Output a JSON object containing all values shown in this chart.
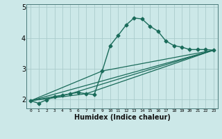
{
  "title": "",
  "xlabel": "Humidex (Indice chaleur)",
  "bg_color": "#cce8e8",
  "grid_color": "#aacccc",
  "line_color": "#1a6b5a",
  "xlim": [
    -0.5,
    23.5
  ],
  "ylim": [
    1.7,
    5.1
  ],
  "yticks": [
    2,
    3,
    4,
    5
  ],
  "xticks": [
    0,
    1,
    2,
    3,
    4,
    5,
    6,
    7,
    8,
    9,
    10,
    11,
    12,
    13,
    14,
    15,
    16,
    17,
    18,
    19,
    20,
    21,
    22,
    23
  ],
  "lines": [
    {
      "x": [
        0,
        1,
        2,
        3,
        4,
        5,
        6,
        7,
        8,
        9,
        10,
        11,
        12,
        13,
        14,
        15,
        16,
        17,
        18,
        19,
        20,
        21,
        22,
        23
      ],
      "y": [
        1.95,
        1.87,
        1.98,
        2.08,
        2.12,
        2.18,
        2.22,
        2.18,
        2.15,
        2.92,
        3.75,
        4.08,
        4.42,
        4.65,
        4.62,
        4.38,
        4.22,
        3.9,
        3.75,
        3.7,
        3.62,
        3.62,
        3.62,
        3.6
      ],
      "marker": "D",
      "markersize": 2.5,
      "linewidth": 1.0
    },
    {
      "x": [
        0,
        23
      ],
      "y": [
        1.95,
        3.6
      ],
      "marker": null,
      "linewidth": 0.9
    },
    {
      "x": [
        0,
        5,
        23
      ],
      "y": [
        1.95,
        2.18,
        3.6
      ],
      "marker": null,
      "linewidth": 0.9
    },
    {
      "x": [
        0,
        7,
        23
      ],
      "y": [
        1.95,
        2.18,
        3.6
      ],
      "marker": null,
      "linewidth": 0.9
    },
    {
      "x": [
        0,
        9,
        23
      ],
      "y": [
        1.95,
        2.92,
        3.6
      ],
      "marker": null,
      "linewidth": 0.9
    }
  ]
}
